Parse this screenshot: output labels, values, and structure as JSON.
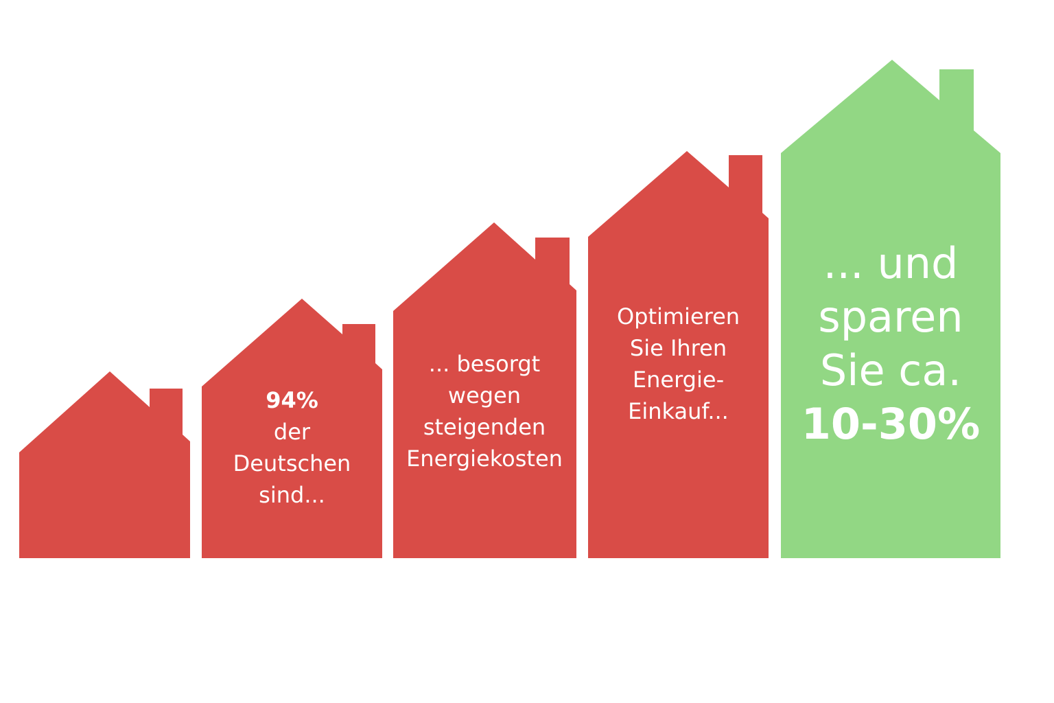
{
  "colors": {
    "red_house": "#d94c47",
    "green_house": "#92d784",
    "text": "#ffffff"
  },
  "houses": [
    {
      "name": "house-1",
      "color_key": "red_house",
      "lines": []
    },
    {
      "name": "house-2",
      "color_key": "red_house",
      "lines": [
        {
          "text": "94%",
          "bold": true
        },
        {
          "text": "der",
          "bold": false
        },
        {
          "text": "Deutschen",
          "bold": false
        },
        {
          "text": "sind...",
          "bold": false
        }
      ]
    },
    {
      "name": "house-3",
      "color_key": "red_house",
      "lines": [
        {
          "text": "... besorgt",
          "bold": false
        },
        {
          "text": "wegen",
          "bold": false
        },
        {
          "text": "steigenden",
          "bold": false
        },
        {
          "text": "Energiekosten",
          "bold": false
        }
      ]
    },
    {
      "name": "house-4",
      "color_key": "red_house",
      "lines": [
        {
          "text": "Optimieren",
          "bold": false
        },
        {
          "text": "Sie Ihren",
          "bold": false
        },
        {
          "text": "Energie-",
          "bold": false
        },
        {
          "text": "Einkauf...",
          "bold": false
        }
      ]
    },
    {
      "name": "house-5",
      "color_key": "green_house",
      "lines": [
        {
          "text": "... und",
          "bold": false
        },
        {
          "text": "sparen",
          "bold": false
        },
        {
          "text": "Sie ca.",
          "bold": false
        },
        {
          "text": "10-30%",
          "bold": true
        }
      ]
    }
  ]
}
